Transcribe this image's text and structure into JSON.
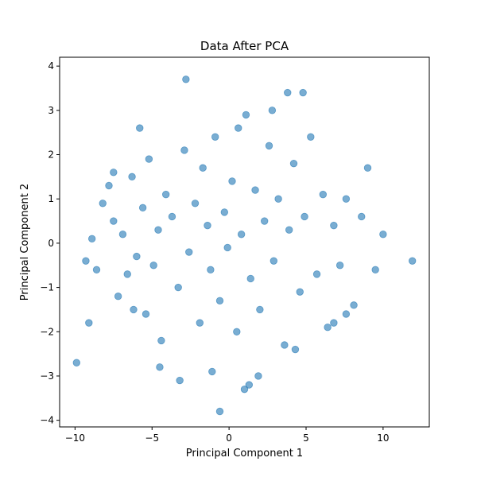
{
  "chart_data": {
    "type": "scatter",
    "title": "Data After PCA",
    "xlabel": "Principal Component 1",
    "ylabel": "Principal Component 2",
    "xlim": [
      -11,
      13
    ],
    "ylim": [
      -4.15,
      4.2
    ],
    "xticks": [
      -10,
      -5,
      0,
      5,
      10
    ],
    "yticks": [
      -4,
      -3,
      -2,
      -1,
      0,
      1,
      2,
      3,
      4
    ],
    "xtick_labels": [
      "−10",
      "−5",
      "0",
      "5",
      "10"
    ],
    "ytick_labels": [
      "−4",
      "−3",
      "−2",
      "−1",
      "0",
      "1",
      "2",
      "3",
      "4"
    ],
    "grid": false,
    "marker_color": "#1f77b4",
    "marker_alpha": 0.6,
    "series": [
      {
        "x": [
          -9.9,
          -9.1,
          -8.9,
          -9.3,
          -8.2,
          -7.8,
          -7.5,
          -7.2,
          -6.9,
          -6.6,
          -6.3,
          -6.0,
          -5.8,
          -5.6,
          -5.4,
          -5.2,
          -4.9,
          -4.6,
          -4.4,
          -4.1,
          -3.7,
          -3.3,
          -2.9,
          -2.6,
          -2.2,
          -1.9,
          -1.7,
          -1.4,
          -1.2,
          -0.9,
          -0.6,
          -0.3,
          -0.1,
          0.2,
          0.5,
          0.8,
          1.1,
          1.4,
          1.7,
          2.0,
          2.3,
          2.6,
          2.9,
          3.2,
          3.6,
          3.9,
          4.2,
          4.6,
          4.9,
          5.3,
          5.7,
          6.1,
          6.4,
          6.8,
          7.2,
          7.6,
          8.1,
          8.6,
          9.0,
          9.5,
          10.0,
          11.9,
          -2.8,
          3.8,
          4.8,
          -0.6,
          -1.1,
          1.0,
          1.3,
          -4.5,
          -3.2,
          2.8,
          4.3,
          -7.5,
          -8.6,
          -6.2,
          6.8,
          7.6,
          0.6,
          1.9
        ],
        "y": [
          -2.7,
          -1.8,
          0.1,
          -0.4,
          0.9,
          1.3,
          0.5,
          -1.2,
          0.2,
          -0.7,
          1.5,
          -0.3,
          2.6,
          0.8,
          -1.6,
          1.9,
          -0.5,
          0.3,
          -2.2,
          1.1,
          0.6,
          -1.0,
          2.1,
          -0.2,
          0.9,
          -1.8,
          1.7,
          0.4,
          -0.6,
          2.4,
          -1.3,
          0.7,
          -0.1,
          1.4,
          -2.0,
          0.2,
          2.9,
          -0.8,
          1.2,
          -1.5,
          0.5,
          2.2,
          -0.4,
          1.0,
          -2.3,
          0.3,
          1.8,
          -1.1,
          0.6,
          2.4,
          -0.7,
          1.1,
          -1.9,
          0.4,
          -0.5,
          1.0,
          -1.4,
          0.6,
          1.7,
          -0.6,
          0.2,
          -0.4,
          3.7,
          3.4,
          3.4,
          -3.8,
          -2.9,
          -3.3,
          -3.2,
          -2.8,
          -3.1,
          3.0,
          -2.4,
          1.6,
          -0.6,
          -1.5,
          -1.8,
          -1.6,
          2.6,
          -3.0
        ]
      }
    ]
  }
}
